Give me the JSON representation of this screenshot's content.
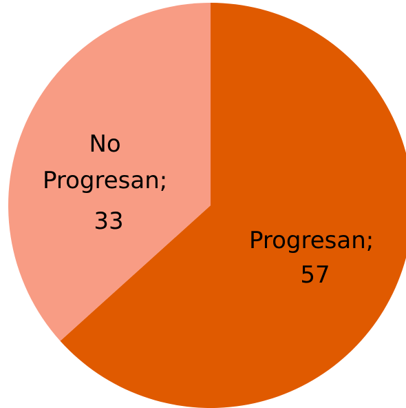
{
  "chart_data": {
    "type": "pie",
    "title": "",
    "slices": [
      {
        "label": "Progresan",
        "value": 57,
        "label_text": "Progresan;",
        "value_text": "57",
        "color": "#e05a00"
      },
      {
        "label": "No Progresan",
        "value": 33,
        "label_lines": [
          "No",
          "Progresan;"
        ],
        "value_text": "33",
        "color": "#f89c84"
      }
    ],
    "start_angle": "12 o'clock",
    "direction": "clockwise",
    "legend": "none",
    "data_labels": "category; value"
  }
}
